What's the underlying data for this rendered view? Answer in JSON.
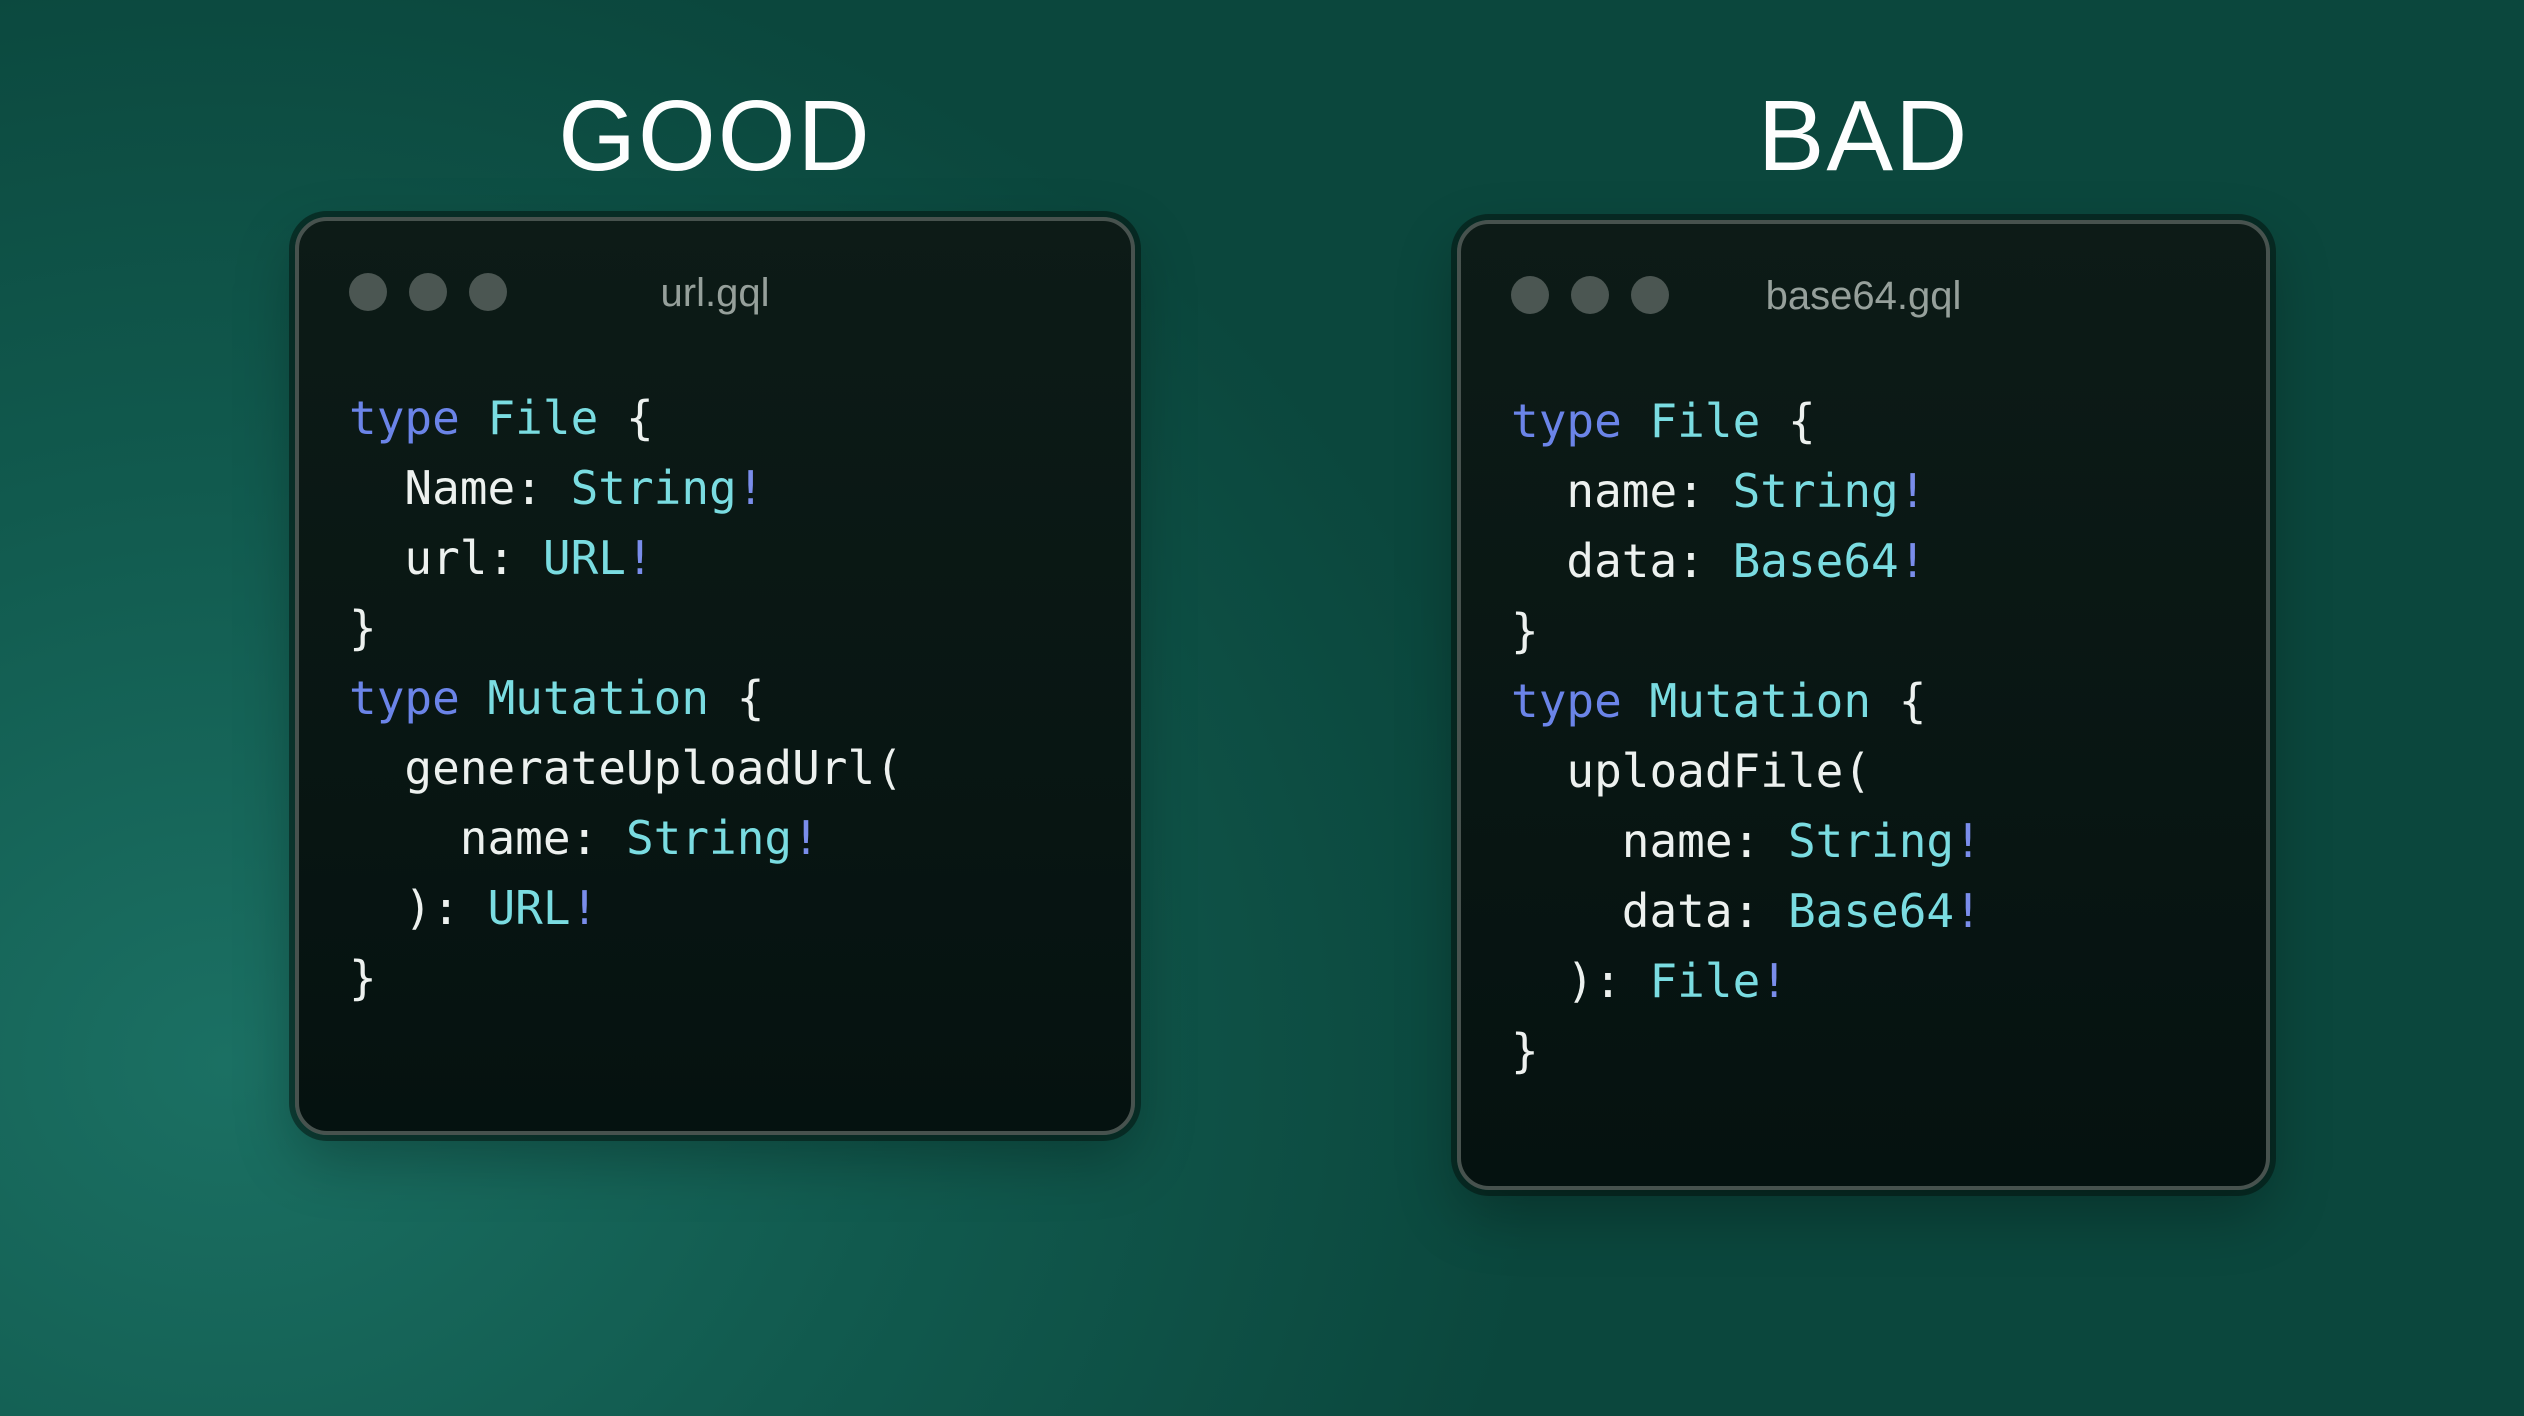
{
  "colors": {
    "bg_glow": "#1b7063",
    "bg_mid": "#115a4e",
    "bg_edge": "#0b473d",
    "window_bg_top": "#0d1b17",
    "window_bg_bottom": "#051210",
    "window_border": "#47524e",
    "dot": "#4b5652",
    "title": "#96a09b",
    "heading": "#fdfefe",
    "keyword": "#6b84e8",
    "typename": "#7adce1",
    "plain": "#edf1ef",
    "bang": "#7a8deb"
  },
  "panels": [
    {
      "verdict": "GOOD",
      "filename": "url.gql",
      "code": [
        [
          {
            "t": "type",
            "c": "keyword"
          },
          {
            "t": " ",
            "c": "plain"
          },
          {
            "t": "File",
            "c": "typename"
          },
          {
            "t": " {",
            "c": "plain"
          }
        ],
        [
          {
            "t": "  Name: ",
            "c": "plain"
          },
          {
            "t": "String",
            "c": "typename"
          },
          {
            "t": "!",
            "c": "bang"
          }
        ],
        [
          {
            "t": "  url: ",
            "c": "plain"
          },
          {
            "t": "URL",
            "c": "typename"
          },
          {
            "t": "!",
            "c": "bang"
          }
        ],
        [
          {
            "t": "}",
            "c": "plain"
          }
        ],
        [
          {
            "t": "type",
            "c": "keyword"
          },
          {
            "t": " ",
            "c": "plain"
          },
          {
            "t": "Mutation",
            "c": "typename"
          },
          {
            "t": " {",
            "c": "plain"
          }
        ],
        [
          {
            "t": "  generateUploadUrl(",
            "c": "plain"
          }
        ],
        [
          {
            "t": "    name: ",
            "c": "plain"
          },
          {
            "t": "String",
            "c": "typename"
          },
          {
            "t": "!",
            "c": "bang"
          }
        ],
        [
          {
            "t": "  ): ",
            "c": "plain"
          },
          {
            "t": "URL",
            "c": "typename"
          },
          {
            "t": "!",
            "c": "bang"
          }
        ],
        [
          {
            "t": "}",
            "c": "plain"
          }
        ]
      ]
    },
    {
      "verdict": "BAD",
      "filename": "base64.gql",
      "code": [
        [
          {
            "t": "type",
            "c": "keyword"
          },
          {
            "t": " ",
            "c": "plain"
          },
          {
            "t": "File",
            "c": "typename"
          },
          {
            "t": " {",
            "c": "plain"
          }
        ],
        [
          {
            "t": "  name: ",
            "c": "plain"
          },
          {
            "t": "String",
            "c": "typename"
          },
          {
            "t": "!",
            "c": "bang"
          }
        ],
        [
          {
            "t": "  data: ",
            "c": "plain"
          },
          {
            "t": "Base64",
            "c": "typename"
          },
          {
            "t": "!",
            "c": "bang"
          }
        ],
        [
          {
            "t": "}",
            "c": "plain"
          }
        ],
        [
          {
            "t": "type",
            "c": "keyword"
          },
          {
            "t": " ",
            "c": "plain"
          },
          {
            "t": "Mutation",
            "c": "typename"
          },
          {
            "t": " {",
            "c": "plain"
          }
        ],
        [
          {
            "t": "  uploadFile(",
            "c": "plain"
          }
        ],
        [
          {
            "t": "    name: ",
            "c": "plain"
          },
          {
            "t": "String",
            "c": "typename"
          },
          {
            "t": "!",
            "c": "bang"
          }
        ],
        [
          {
            "t": "    data: ",
            "c": "plain"
          },
          {
            "t": "Base64",
            "c": "typename"
          },
          {
            "t": "!",
            "c": "bang"
          }
        ],
        [
          {
            "t": "  ): ",
            "c": "plain"
          },
          {
            "t": "File",
            "c": "typename"
          },
          {
            "t": "!",
            "c": "bang"
          }
        ],
        [
          {
            "t": "}",
            "c": "plain"
          }
        ]
      ]
    }
  ]
}
